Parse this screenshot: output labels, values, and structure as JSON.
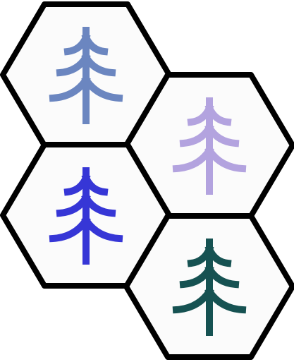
{
  "hex_fill": "#fbfbfb",
  "outline_color": "#000000",
  "tiles": [
    {
      "name": "hex-tile-top-left",
      "tree_name": "tree-icon-slate-blue",
      "color": "#6b86c0"
    },
    {
      "name": "hex-tile-middle-right",
      "tree_name": "tree-icon-lavender",
      "color": "#b3a3df"
    },
    {
      "name": "hex-tile-middle-left",
      "tree_name": "tree-icon-royal-blue",
      "color": "#3636d6"
    },
    {
      "name": "hex-tile-bottom-right",
      "tree_name": "tree-icon-dark-teal",
      "color": "#165252"
    }
  ]
}
